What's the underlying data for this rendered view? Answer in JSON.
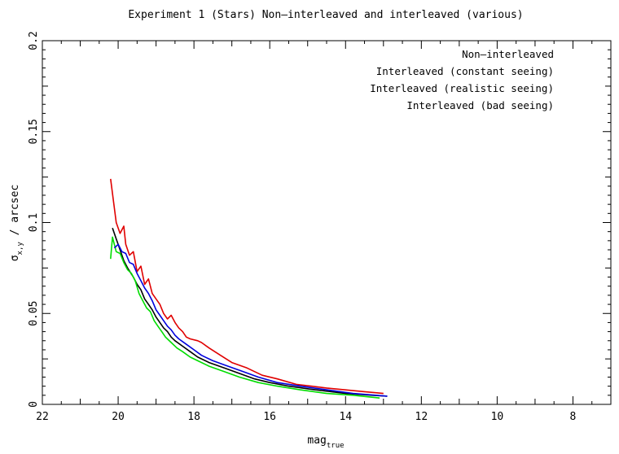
{
  "chart_data": {
    "type": "line",
    "title": "Experiment 1 (Stars) Non—interleaved and interleaved (various)",
    "xlabel": "mag",
    "xlabel_sub": "true",
    "ylabel": "σ",
    "ylabel_sub": "x,y",
    "ylabel_tail": " / arcsec",
    "xlim": [
      22,
      7
    ],
    "ylim": [
      0,
      0.2
    ],
    "x_ticks": [
      "22",
      "20",
      "18",
      "16",
      "14",
      "12",
      "10",
      "8"
    ],
    "x_tick_values": [
      22,
      20,
      18,
      16,
      14,
      12,
      10,
      8
    ],
    "y_ticks": [
      "0",
      "0.05",
      "0.1",
      "0.15",
      "0.2"
    ],
    "y_tick_values": [
      0,
      0.05,
      0.1,
      0.15,
      0.2
    ],
    "grid": false,
    "legend_position": "top-right",
    "series": [
      {
        "name": "Non—interleaved",
        "color": "#e00000",
        "points": [
          [
            20.2,
            0.124
          ],
          [
            20.05,
            0.1
          ],
          [
            19.95,
            0.094
          ],
          [
            19.85,
            0.098
          ],
          [
            19.8,
            0.088
          ],
          [
            19.7,
            0.082
          ],
          [
            19.6,
            0.084
          ],
          [
            19.5,
            0.073
          ],
          [
            19.4,
            0.076
          ],
          [
            19.3,
            0.066
          ],
          [
            19.2,
            0.069
          ],
          [
            19.1,
            0.061
          ],
          [
            19.0,
            0.058
          ],
          [
            18.9,
            0.055
          ],
          [
            18.8,
            0.05
          ],
          [
            18.7,
            0.047
          ],
          [
            18.6,
            0.049
          ],
          [
            18.5,
            0.045
          ],
          [
            18.4,
            0.042
          ],
          [
            18.3,
            0.04
          ],
          [
            18.2,
            0.037
          ],
          [
            18.1,
            0.036
          ],
          [
            17.9,
            0.035
          ],
          [
            17.8,
            0.034
          ],
          [
            17.6,
            0.031
          ],
          [
            17.3,
            0.027
          ],
          [
            17.0,
            0.023
          ],
          [
            16.6,
            0.02
          ],
          [
            16.2,
            0.016
          ],
          [
            15.8,
            0.014
          ],
          [
            15.3,
            0.011
          ],
          [
            14.5,
            0.009
          ],
          [
            13.5,
            0.007
          ],
          [
            13.0,
            0.006
          ]
        ]
      },
      {
        "name": "Interleaved (constant seeing)",
        "color": "#000000",
        "points": [
          [
            20.15,
            0.097
          ],
          [
            20.05,
            0.091
          ],
          [
            19.95,
            0.085
          ],
          [
            19.85,
            0.079
          ],
          [
            19.75,
            0.075
          ],
          [
            19.6,
            0.07
          ],
          [
            19.5,
            0.066
          ],
          [
            19.4,
            0.063
          ],
          [
            19.3,
            0.058
          ],
          [
            19.2,
            0.055
          ],
          [
            19.1,
            0.052
          ],
          [
            19.0,
            0.048
          ],
          [
            18.9,
            0.045
          ],
          [
            18.8,
            0.042
          ],
          [
            18.7,
            0.04
          ],
          [
            18.6,
            0.037
          ],
          [
            18.5,
            0.035
          ],
          [
            18.3,
            0.032
          ],
          [
            18.1,
            0.029
          ],
          [
            17.9,
            0.026
          ],
          [
            17.6,
            0.023
          ],
          [
            17.2,
            0.02
          ],
          [
            16.8,
            0.017
          ],
          [
            16.4,
            0.014
          ],
          [
            16.0,
            0.012
          ],
          [
            15.5,
            0.01
          ],
          [
            14.8,
            0.008
          ],
          [
            14.0,
            0.006
          ],
          [
            13.3,
            0.005
          ],
          [
            12.9,
            0.0045
          ]
        ]
      },
      {
        "name": "Interleaved (realistic seeing)",
        "color": "#00dd00",
        "points": [
          [
            20.2,
            0.08
          ],
          [
            20.15,
            0.092
          ],
          [
            20.05,
            0.084
          ],
          [
            19.95,
            0.083
          ],
          [
            19.85,
            0.078
          ],
          [
            19.75,
            0.074
          ],
          [
            19.65,
            0.072
          ],
          [
            19.55,
            0.068
          ],
          [
            19.45,
            0.061
          ],
          [
            19.35,
            0.057
          ],
          [
            19.25,
            0.053
          ],
          [
            19.15,
            0.051
          ],
          [
            19.05,
            0.046
          ],
          [
            18.95,
            0.043
          ],
          [
            18.85,
            0.04
          ],
          [
            18.75,
            0.037
          ],
          [
            18.6,
            0.034
          ],
          [
            18.45,
            0.031
          ],
          [
            18.3,
            0.029
          ],
          [
            18.1,
            0.026
          ],
          [
            17.9,
            0.024
          ],
          [
            17.6,
            0.021
          ],
          [
            17.2,
            0.018
          ],
          [
            16.8,
            0.015
          ],
          [
            16.3,
            0.012
          ],
          [
            15.8,
            0.01
          ],
          [
            15.2,
            0.008
          ],
          [
            14.5,
            0.006
          ],
          [
            13.8,
            0.005
          ],
          [
            13.1,
            0.0035
          ]
        ]
      },
      {
        "name": "Interleaved (bad seeing)",
        "color": "#0000dd",
        "points": [
          [
            20.1,
            0.086
          ],
          [
            20.0,
            0.088
          ],
          [
            19.9,
            0.084
          ],
          [
            19.8,
            0.083
          ],
          [
            19.7,
            0.078
          ],
          [
            19.6,
            0.077
          ],
          [
            19.5,
            0.072
          ],
          [
            19.4,
            0.068
          ],
          [
            19.3,
            0.064
          ],
          [
            19.2,
            0.061
          ],
          [
            19.1,
            0.057
          ],
          [
            19.0,
            0.052
          ],
          [
            18.9,
            0.049
          ],
          [
            18.8,
            0.046
          ],
          [
            18.7,
            0.043
          ],
          [
            18.6,
            0.041
          ],
          [
            18.5,
            0.038
          ],
          [
            18.4,
            0.036
          ],
          [
            18.2,
            0.033
          ],
          [
            18.0,
            0.03
          ],
          [
            17.8,
            0.027
          ],
          [
            17.5,
            0.024
          ],
          [
            17.1,
            0.021
          ],
          [
            16.7,
            0.018
          ],
          [
            16.3,
            0.015
          ],
          [
            15.8,
            0.012
          ],
          [
            15.2,
            0.01
          ],
          [
            14.5,
            0.008
          ],
          [
            13.8,
            0.006
          ],
          [
            12.9,
            0.0045
          ]
        ]
      }
    ]
  }
}
